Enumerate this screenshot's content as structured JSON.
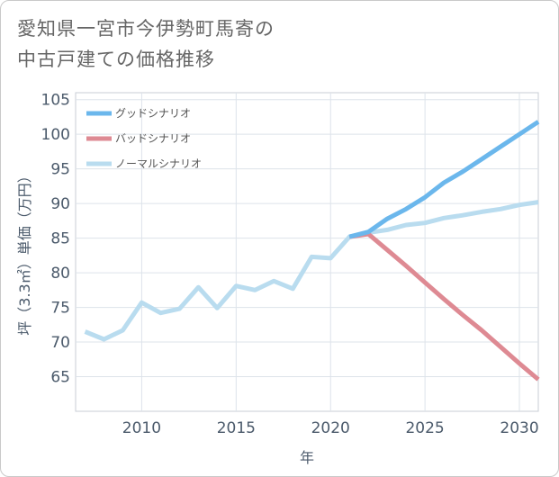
{
  "header": {
    "title_line1": "愛知県一宮市今伊勢町馬寄の",
    "title_line2": "中古戸建ての価格推移"
  },
  "chart_data": {
    "type": "line",
    "title": "愛知県一宮市今伊勢町馬寄の中古戸建ての価格推移",
    "xlabel": "年",
    "ylabel": "坪（3.3㎡）単価（万円）",
    "xlim": [
      2006.5,
      2031
    ],
    "ylim": [
      60,
      106
    ],
    "x_ticks": [
      2010,
      2015,
      2020,
      2025,
      2030
    ],
    "y_ticks": [
      65,
      70,
      75,
      80,
      85,
      90,
      95,
      100,
      105
    ],
    "grid": true,
    "legend_position": "top-left",
    "series": [
      {
        "name": "グッドシナリオ",
        "color": "#6bb7ec",
        "x": [
          2021,
          2022,
          2023,
          2024,
          2025,
          2026,
          2027,
          2028,
          2029,
          2030,
          2031
        ],
        "values": [
          85.2,
          85.9,
          87.8,
          89.2,
          90.9,
          93.0,
          94.6,
          96.4,
          98.2,
          100.0,
          101.8
        ]
      },
      {
        "name": "バッドシナリオ",
        "color": "#de8a93",
        "x": [
          2021,
          2022,
          2023,
          2024,
          2025,
          2026,
          2027,
          2028,
          2029,
          2030,
          2031
        ],
        "values": [
          85.2,
          85.6,
          83.3,
          81.0,
          78.6,
          76.2,
          73.9,
          71.7,
          69.3,
          66.9,
          64.6
        ]
      },
      {
        "name": "ノーマルシナリオ",
        "color": "#b9dcef",
        "x": [
          2007,
          2008,
          2009,
          2010,
          2011,
          2012,
          2013,
          2014,
          2015,
          2016,
          2017,
          2018,
          2019,
          2020,
          2021,
          2022,
          2023,
          2024,
          2025,
          2026,
          2027,
          2028,
          2029,
          2030,
          2031
        ],
        "values": [
          71.5,
          70.4,
          71.7,
          75.7,
          74.2,
          74.8,
          77.9,
          74.9,
          78.1,
          77.5,
          78.8,
          77.7,
          82.3,
          82.1,
          85.2,
          85.8,
          86.2,
          86.9,
          87.2,
          87.9,
          88.3,
          88.8,
          89.2,
          89.8,
          90.2
        ]
      }
    ]
  }
}
